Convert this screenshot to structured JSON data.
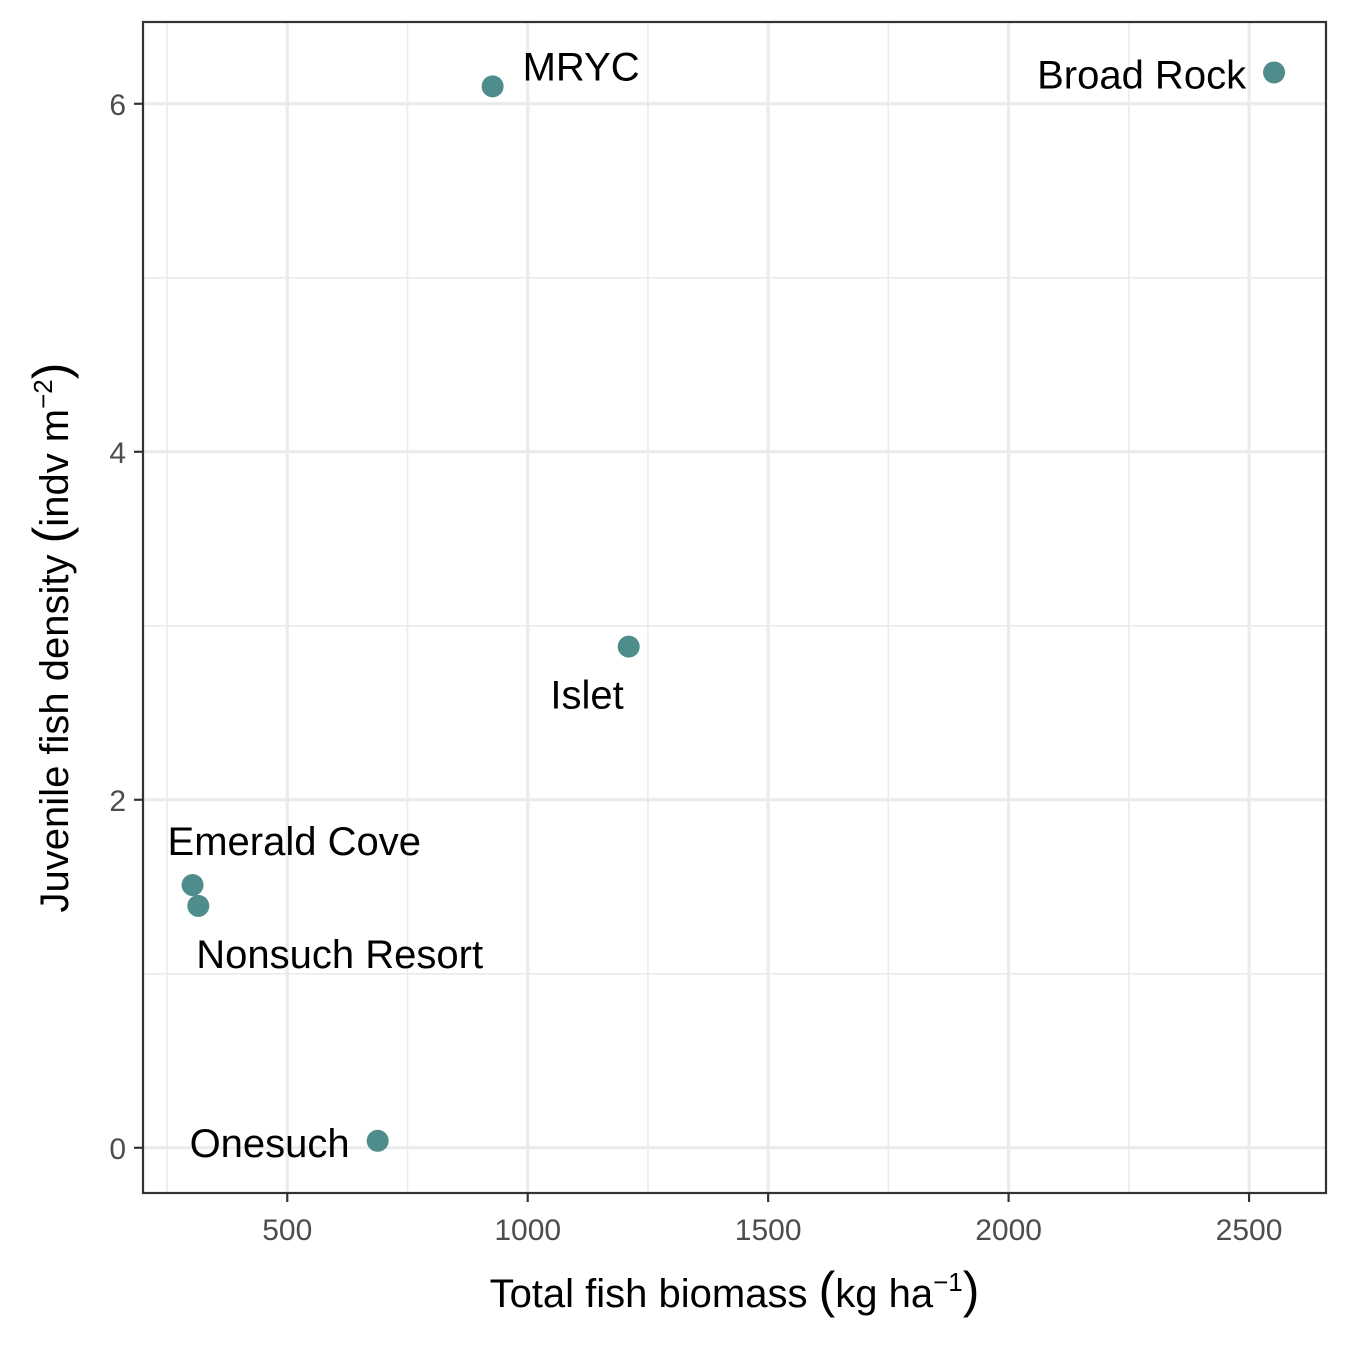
{
  "chart_data": {
    "type": "scatter",
    "title": "",
    "xlabel": {
      "prefix": "Total fish biomass ",
      "unit_base": "kg ha",
      "unit_sup": "−1"
    },
    "ylabel": {
      "prefix": "Juvenile fish density ",
      "unit_base": "indv m",
      "unit_sup": "−2"
    },
    "xlim": [
      200,
      2660
    ],
    "ylim": [
      -0.26,
      6.47
    ],
    "x_ticks": [
      500,
      1000,
      1500,
      2000,
      2500
    ],
    "x_tick_labels": [
      "500",
      "1000",
      "1500",
      "2000",
      "2500"
    ],
    "x_minor_ticks": [
      250,
      750,
      1250,
      1750,
      2250
    ],
    "y_ticks": [
      0,
      2,
      4,
      6
    ],
    "y_tick_labels": [
      "0",
      "2",
      "4",
      "6"
    ],
    "y_minor_ticks": [
      1,
      3,
      5
    ],
    "grid": true,
    "point_color": "#4e8d8b",
    "points": [
      {
        "label": "MRYC",
        "x": 927,
        "y": 6.1,
        "label_pos": "right"
      },
      {
        "label": "Broad Rock",
        "x": 2552,
        "y": 6.18,
        "label_pos": "left"
      },
      {
        "label": "Islet",
        "x": 1210,
        "y": 2.88,
        "label_pos": "below-left"
      },
      {
        "label": "Emerald Cove",
        "x": 303,
        "y": 1.51,
        "label_pos": "above-right"
      },
      {
        "label": "Nonsuch Resort",
        "x": 315,
        "y": 1.39,
        "label_pos": "below-right"
      },
      {
        "label": "Onesuch",
        "x": 688,
        "y": 0.04,
        "label_pos": "left"
      }
    ]
  }
}
